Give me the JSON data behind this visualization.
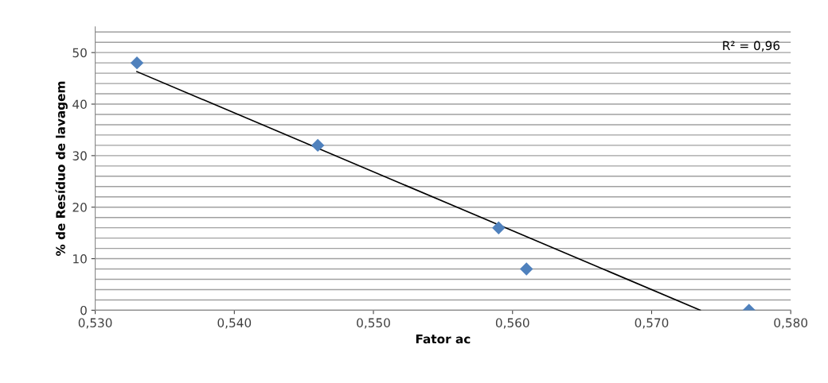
{
  "chart_data": {
    "type": "scatter",
    "xlabel": "Fator ac",
    "ylabel": "% de Resíduo de lavagem",
    "annotations": [
      "R² = 0,96"
    ],
    "series": [
      {
        "color": "#4f81bd",
        "marker": "diamond",
        "x": [
          0.533,
          0.546,
          0.559,
          0.561,
          0.577
        ],
        "values": [
          48,
          32,
          16,
          8,
          0
        ]
      },
      {
        "type": "line",
        "color": "#000000",
        "marker": "none",
        "x": [
          0.533,
          0.5735
        ],
        "values": [
          46.3,
          0
        ]
      }
    ],
    "xlim": [
      0.53,
      0.58
    ],
    "xticks": [
      {
        "value": 0.53,
        "label": "0,530"
      },
      {
        "value": 0.54,
        "label": "0,540"
      },
      {
        "value": 0.55,
        "label": "0,550"
      },
      {
        "value": 0.56,
        "label": "0,560"
      },
      {
        "value": 0.57,
        "label": "0,570"
      },
      {
        "value": 0.58,
        "label": "0,580"
      }
    ],
    "ylim": [
      0,
      55
    ],
    "yticks": [
      0,
      {
        "value": 2,
        "label": null
      },
      {
        "value": 4,
        "label": null
      },
      {
        "value": 6,
        "label": null
      },
      {
        "value": 8,
        "label": null
      },
      10,
      {
        "value": 12,
        "label": null
      },
      {
        "value": 14,
        "label": null
      },
      {
        "value": 16,
        "label": null
      },
      {
        "value": 18,
        "label": null
      },
      20,
      {
        "value": 22,
        "label": null
      },
      {
        "value": 24,
        "label": null
      },
      {
        "value": 26,
        "label": null
      },
      {
        "value": 28,
        "label": null
      },
      30,
      {
        "value": 32,
        "label": null
      },
      {
        "value": 34,
        "label": null
      },
      {
        "value": 36,
        "label": null
      },
      {
        "value": 38,
        "label": null
      },
      40,
      {
        "value": 42,
        "label": null
      },
      {
        "value": 44,
        "label": null
      },
      {
        "value": 46,
        "label": null
      },
      {
        "value": 48,
        "label": null
      },
      50,
      {
        "value": 52,
        "label": null
      },
      {
        "value": 54,
        "label": null
      }
    ],
    "grid": "y",
    "legend": false
  }
}
